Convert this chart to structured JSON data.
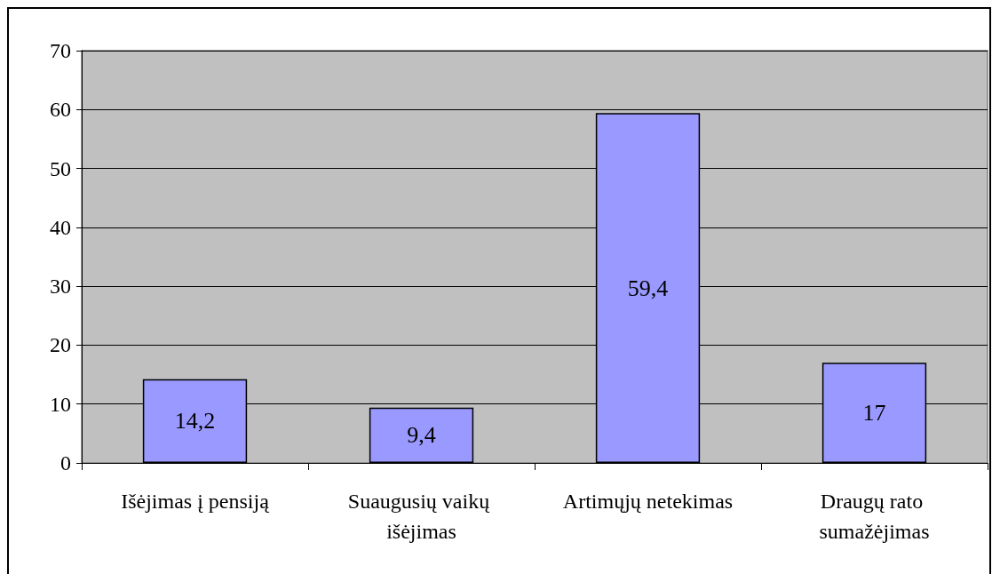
{
  "chart_data": {
    "type": "bar",
    "categories": [
      "Išėjimas į pensiją",
      "Suaugusių vaikų išėjimas",
      "Artimųjų netekimas",
      "Draugų rato sumažėjimas"
    ],
    "values": [
      14.2,
      9.4,
      59.4,
      17
    ],
    "value_labels": [
      "14,2",
      "9,4",
      "59,4",
      "17"
    ],
    "color": "#9999ff",
    "ylim": [
      0,
      70
    ],
    "yticks": [
      0,
      10,
      20,
      30,
      40,
      50,
      60,
      70
    ],
    "grid": "y"
  }
}
